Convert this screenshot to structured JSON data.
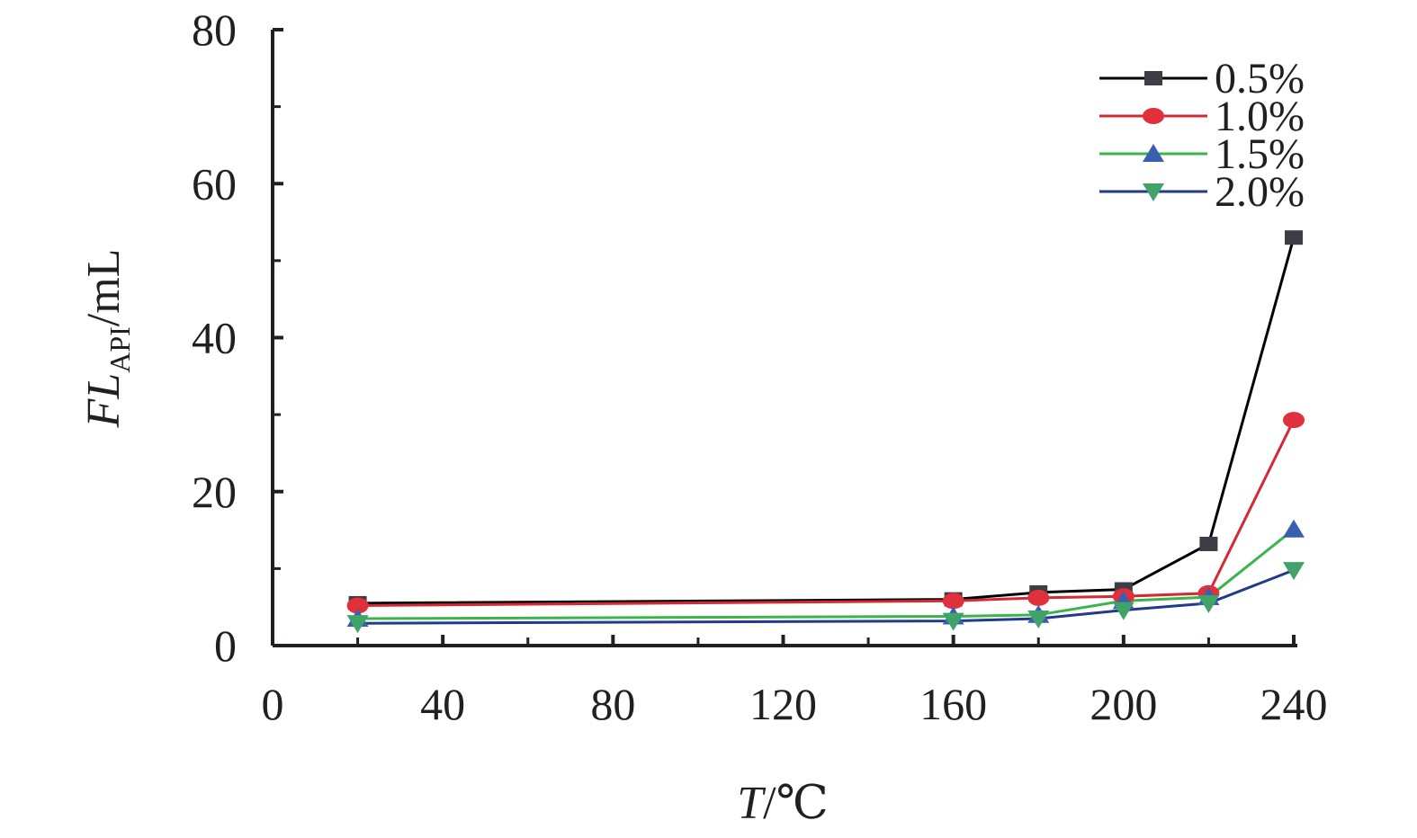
{
  "chart_data": {
    "type": "line",
    "title": "",
    "xlabel": {
      "main": "T",
      "rest": "/℃"
    },
    "ylabel": {
      "main": "FL",
      "subscript": "API",
      "rest": "/mL"
    },
    "xlim": [
      0,
      240
    ],
    "ylim": [
      0,
      80
    ],
    "xticks": [
      0,
      40,
      80,
      120,
      160,
      200,
      240
    ],
    "yticks": [
      0,
      20,
      40,
      60,
      80
    ],
    "x": [
      20,
      160,
      180,
      200,
      220,
      240
    ],
    "legend_position": "top-right",
    "series": [
      {
        "name": "0.5%",
        "marker": "square",
        "line_color": "#000000",
        "marker_color": "#3d3d45",
        "values": [
          5.5,
          6.0,
          6.9,
          7.3,
          13.2,
          53.0
        ]
      },
      {
        "name": "1.0%",
        "marker": "circle",
        "line_color": "#d32a36",
        "marker_color": "#e0303c",
        "values": [
          5.2,
          5.8,
          6.2,
          6.4,
          6.8,
          29.3
        ]
      },
      {
        "name": "1.5%",
        "marker": "triangle-up",
        "line_color": "#3bb44a",
        "marker_color": "#3a5fae",
        "values": [
          3.5,
          3.8,
          4.0,
          5.8,
          6.3,
          15.1
        ]
      },
      {
        "name": "2.0%",
        "marker": "triangle-down",
        "line_color": "#233a8c",
        "marker_color": "#3fa36a",
        "values": [
          2.9,
          3.2,
          3.5,
          4.6,
          5.5,
          9.8
        ]
      }
    ]
  }
}
